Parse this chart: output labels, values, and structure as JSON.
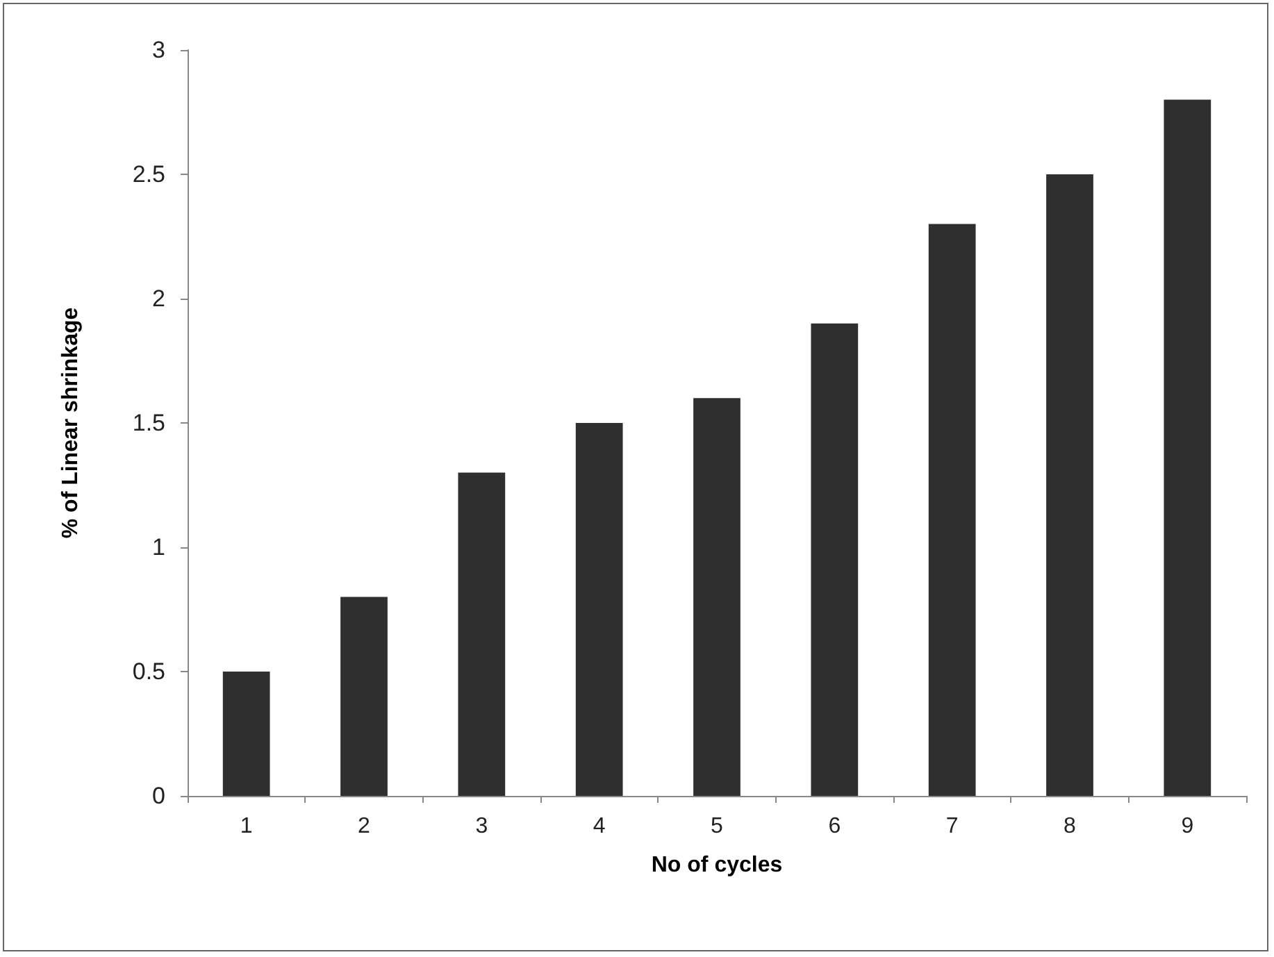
{
  "chart_data": {
    "type": "bar",
    "xlabel": "No of cycles",
    "ylabel": "% of Linear shrinkage",
    "categories": [
      "1",
      "2",
      "3",
      "4",
      "5",
      "6",
      "7",
      "8",
      "9"
    ],
    "values": [
      0.5,
      0.8,
      1.3,
      1.5,
      1.6,
      1.9,
      2.3,
      2.5,
      2.8
    ],
    "color": "#2f2f2f",
    "ylim": [
      0,
      3
    ],
    "yticks": [
      0,
      0.5,
      1,
      1.5,
      2,
      2.5,
      3
    ]
  }
}
